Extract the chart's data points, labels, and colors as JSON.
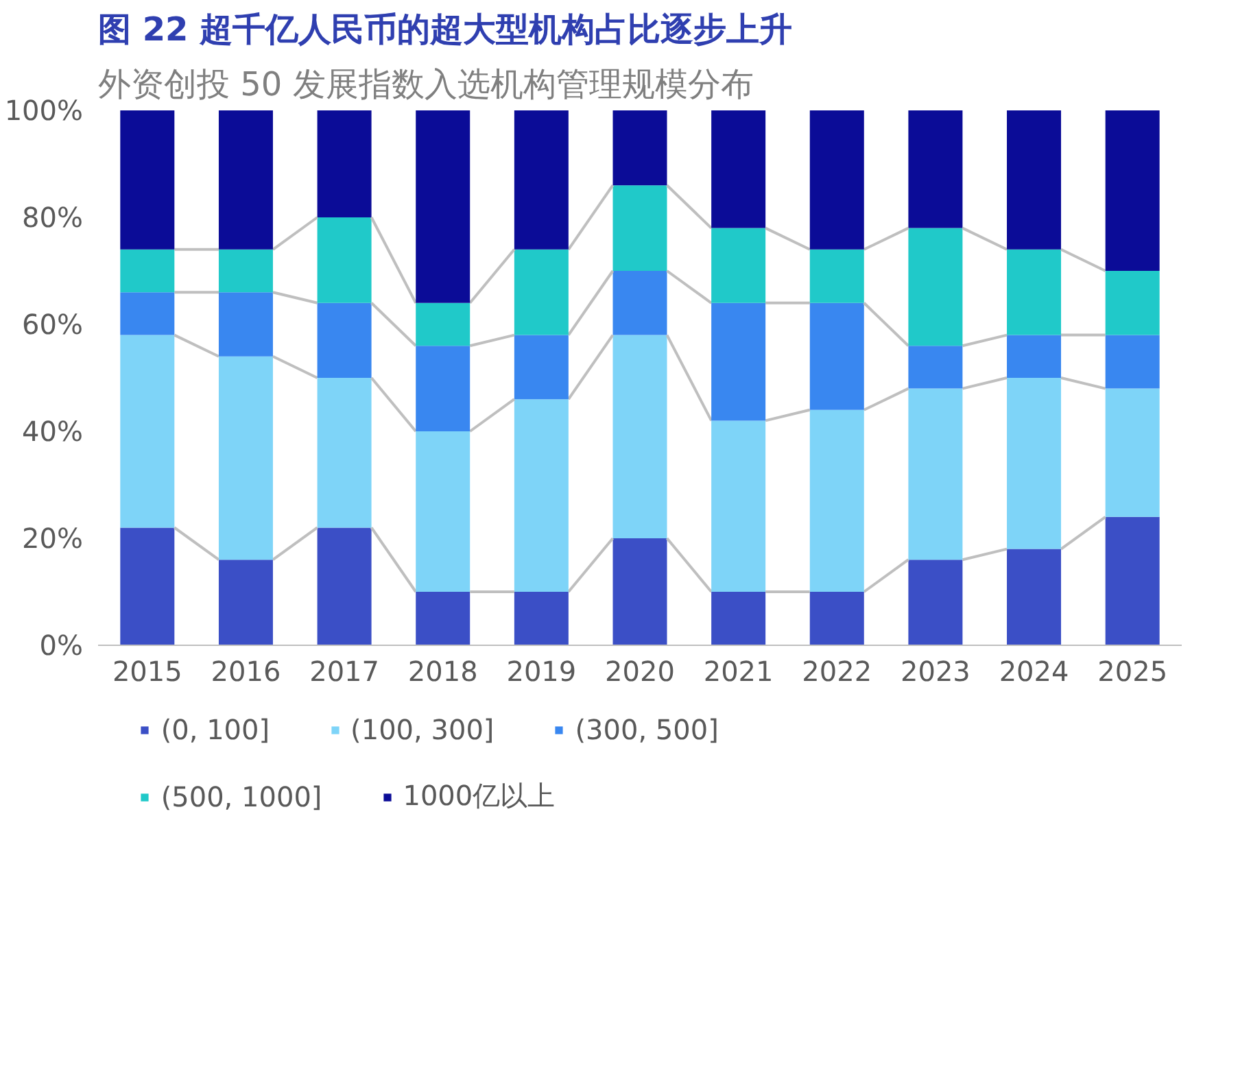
{
  "chart_data": {
    "type": "bar",
    "stacked": true,
    "title": "图 22 超千亿人民币的超大型机构占比逐步上升",
    "subtitle": "外资创投 50 发展指数入选机构管理规模分布",
    "categories": [
      "2015",
      "2016",
      "2017",
      "2018",
      "2019",
      "2020",
      "2021",
      "2022",
      "2023",
      "2024",
      "2025"
    ],
    "series": [
      {
        "name": "(0, 100]",
        "color": "#3b4fc6",
        "values": [
          22,
          16,
          22,
          10,
          10,
          20,
          10,
          10,
          16,
          18,
          24
        ]
      },
      {
        "name": "(100, 300]",
        "color": "#7ed4f8",
        "values": [
          36,
          38,
          28,
          30,
          36,
          38,
          32,
          34,
          32,
          32,
          24
        ]
      },
      {
        "name": "(300, 500]",
        "color": "#3987f0",
        "values": [
          8,
          12,
          14,
          16,
          12,
          12,
          22,
          20,
          8,
          8,
          10
        ]
      },
      {
        "name": "(500, 1000]",
        "color": "#20c9c9",
        "values": [
          8,
          8,
          16,
          8,
          16,
          16,
          14,
          10,
          22,
          16,
          12
        ]
      },
      {
        "name": "1000亿以上",
        "color": "#0b0c97",
        "values": [
          26,
          26,
          20,
          36,
          26,
          14,
          22,
          26,
          22,
          26,
          30
        ]
      }
    ],
    "ylim": [
      0,
      100
    ],
    "yticks": [
      {
        "value": 0,
        "label": "0%"
      },
      {
        "value": 20,
        "label": "20%"
      },
      {
        "value": 40,
        "label": "40%"
      },
      {
        "value": 60,
        "label": "60%"
      },
      {
        "value": 80,
        "label": "80%"
      },
      {
        "value": 100,
        "label": "100%"
      }
    ],
    "grid": false,
    "legend": "bottom"
  }
}
